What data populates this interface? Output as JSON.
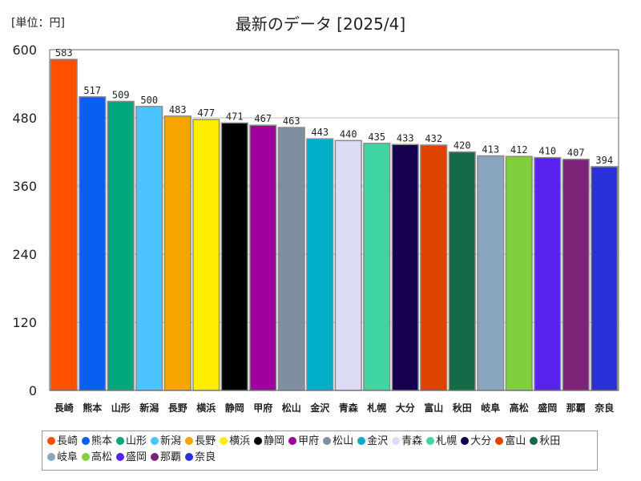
{
  "unit_label": "[単位：円]",
  "chart_data": {
    "type": "bar",
    "title": "最新のデータ [2025/4]",
    "xlabel": "",
    "ylabel": "",
    "ylim": [
      0,
      600
    ],
    "yticks": [
      0,
      120,
      240,
      360,
      480,
      600
    ],
    "grid": true,
    "legend_position": "bottom",
    "categories": [
      "長崎",
      "熊本",
      "山形",
      "新潟",
      "長野",
      "横浜",
      "静岡",
      "甲府",
      "松山",
      "金沢",
      "青森",
      "札幌",
      "大分",
      "富山",
      "秋田",
      "岐阜",
      "高松",
      "盛岡",
      "那覇",
      "奈良"
    ],
    "values": [
      583,
      517,
      509,
      500,
      483,
      477,
      471,
      467,
      463,
      443,
      440,
      435,
      433,
      432,
      420,
      413,
      412,
      410,
      407,
      394
    ],
    "colors": [
      "#ff4f00",
      "#0a5ef0",
      "#00a77a",
      "#4cc4ff",
      "#f5a400",
      "#ffee00",
      "#000000",
      "#a0009e",
      "#7f8fa0",
      "#00aec8",
      "#dcdcf4",
      "#3ed6a0",
      "#14004c",
      "#dd4200",
      "#156a48",
      "#8aa6bf",
      "#7fd03c",
      "#5822ee",
      "#7c2378",
      "#2a31d8"
    ]
  }
}
